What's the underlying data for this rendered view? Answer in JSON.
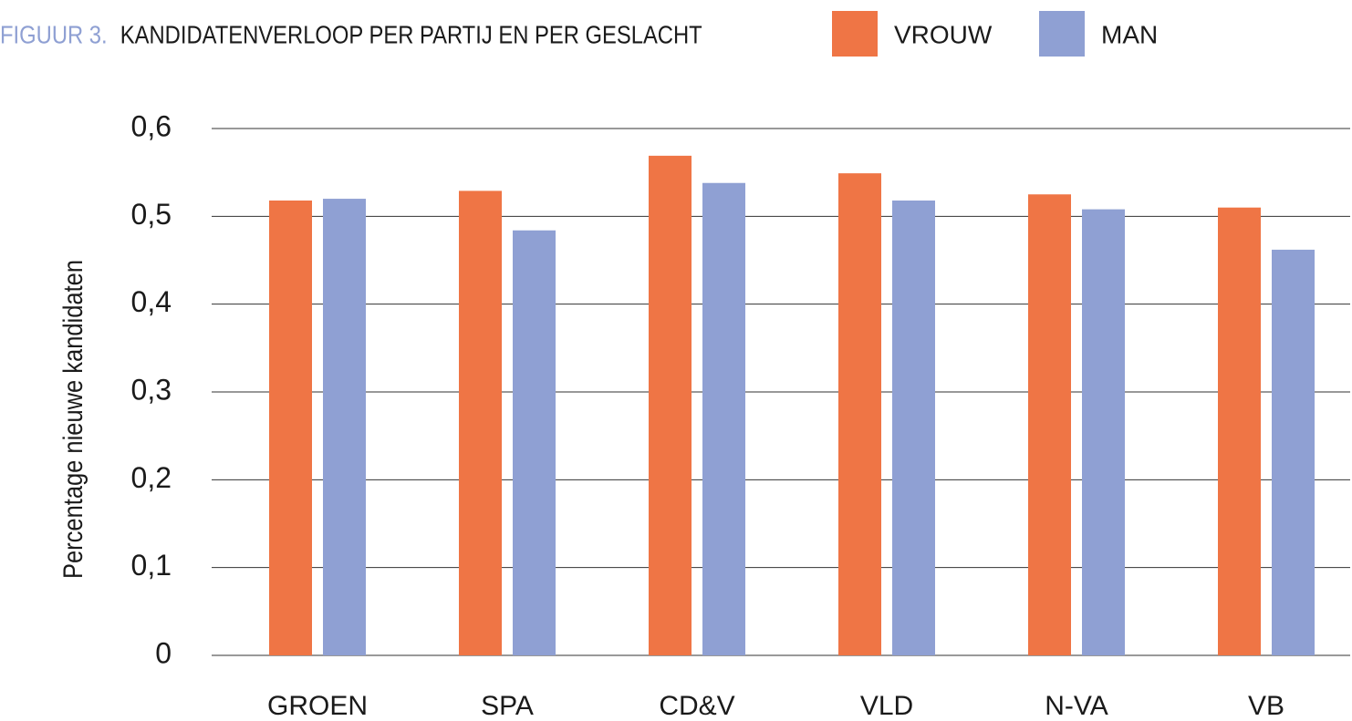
{
  "chart_data": {
    "type": "bar",
    "figure_label": "FIGUUR 3.",
    "title": "KANDIDATENVERLOOP PER PARTIJ EN PER GESLACHT",
    "y_label": "Percentage nieuwe kandidaten",
    "categories": [
      "GROEN",
      "SPA",
      "CD&V",
      "VLD",
      "N-VA",
      "VB"
    ],
    "series": [
      {
        "name": "VROUW",
        "color": "#ef7545",
        "values": [
          0.518,
          0.529,
          0.569,
          0.549,
          0.525,
          0.51
        ]
      },
      {
        "name": "MAN",
        "color": "#8fa0d3",
        "values": [
          0.52,
          0.484,
          0.538,
          0.518,
          0.508,
          0.462
        ]
      }
    ],
    "ylim": [
      0,
      0.6
    ],
    "yticks": [
      0,
      {
        "value": 0.1,
        "label": "0,1"
      },
      {
        "value": 0.2,
        "label": "0,2"
      },
      {
        "value": 0.3,
        "label": "0,3"
      },
      {
        "value": 0.4,
        "label": "0,4"
      },
      {
        "value": 0.5,
        "label": "0,5"
      },
      {
        "value": 0.6,
        "label": "0,6"
      }
    ],
    "grid": true,
    "legend": "top"
  }
}
